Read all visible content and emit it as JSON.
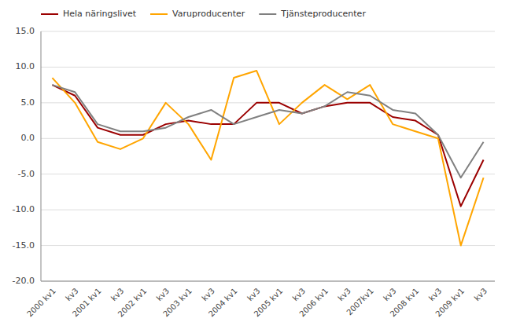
{
  "chart_data": {
    "type": "line",
    "categories": [
      "2000 kv1",
      "kv3",
      "2001 kv1",
      "kv3",
      "2002 kv1",
      "kv3",
      "2003 kv1",
      "kv3",
      "2004 kv1",
      "kv3",
      "2005 kv1",
      "kv3",
      "2006 kv1",
      "kv3",
      "2007kv1",
      "kv3",
      "2008 kv1",
      "kv3",
      "2009 kv1",
      "kv3"
    ],
    "series": [
      {
        "name": "Hela näringslivet",
        "color": "#9B0000",
        "values": [
          7.5,
          6.0,
          1.5,
          0.5,
          0.5,
          2.0,
          2.5,
          2.0,
          2.0,
          5.0,
          5.0,
          3.5,
          4.5,
          5.0,
          5.0,
          3.0,
          2.5,
          0.5,
          -9.5,
          -3.0
        ]
      },
      {
        "name": "Varuproducenter",
        "color": "#FFA500",
        "values": [
          8.5,
          5.0,
          -0.5,
          -1.5,
          0.0,
          5.0,
          2.0,
          -3.0,
          8.5,
          9.5,
          2.0,
          5.0,
          7.5,
          5.5,
          7.5,
          2.0,
          1.0,
          0.0,
          -15.0,
          -5.5
        ]
      },
      {
        "name": "Tjänsteproducenter",
        "color": "#808080",
        "values": [
          7.5,
          6.5,
          2.0,
          1.0,
          1.0,
          1.5,
          3.0,
          4.0,
          2.0,
          3.0,
          4.0,
          3.5,
          4.5,
          6.5,
          6.0,
          4.0,
          3.5,
          0.5,
          -5.5,
          -0.5
        ]
      }
    ],
    "ylim": [
      -20.0,
      15.0
    ],
    "yticks": [
      {
        "value": -20.0,
        "label": "-20.0"
      },
      {
        "value": -15.0,
        "label": "-15.0"
      },
      {
        "value": -10.0,
        "label": "-10.0"
      },
      {
        "value": -5.0,
        "label": "-5.0"
      },
      {
        "value": 0.0,
        "label": "0.0"
      },
      {
        "value": 5.0,
        "label": "5.0"
      },
      {
        "value": 10.0,
        "label": "10.0"
      },
      {
        "value": 15.0,
        "label": "15.0"
      }
    ],
    "grid": true,
    "legend": "top-left"
  }
}
